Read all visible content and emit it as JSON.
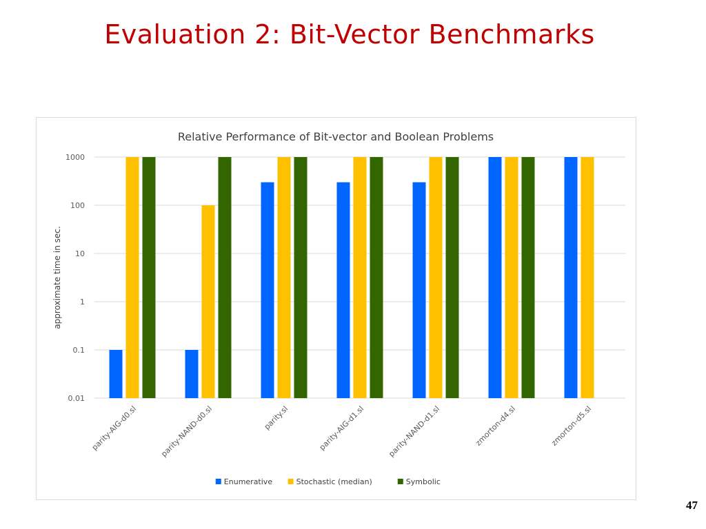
{
  "slide": {
    "title": "Evaluation 2: Bit-Vector Benchmarks",
    "page_number": "47"
  },
  "chart_data": {
    "type": "bar",
    "title": "Relative Performance of Bit-vector and Boolean Problems",
    "xlabel": "",
    "ylabel": "approximate time in sec.",
    "y_scale": "log",
    "ylim": [
      0.01,
      1000
    ],
    "y_ticks": [
      "1000",
      "100",
      "10",
      "1",
      "0.1",
      "0.01"
    ],
    "y_tick_values": [
      1000,
      100,
      10,
      1,
      0.1,
      0.01
    ],
    "grid": true,
    "legend_position": "bottom",
    "categories": [
      "parity-AIG-d0.sl",
      "parity-NAND-d0.sl",
      "parity.sl",
      "parity-AIG-d1.sl",
      "parity-NAND-d1.sl",
      "zmorton-d4.sl",
      "zmorton-d5.sl"
    ],
    "series": [
      {
        "name": "Enumerative",
        "color": "#0066ff",
        "values": [
          0.1,
          0.1,
          300,
          300,
          300,
          1000,
          1000
        ]
      },
      {
        "name": "Stochastic (median)",
        "color": "#ffc000",
        "values": [
          1000,
          100,
          1000,
          1000,
          1000,
          1000,
          1000
        ]
      },
      {
        "name": "Symbolic",
        "color": "#336600",
        "values": [
          1000,
          1000,
          1000,
          1000,
          1000,
          1000,
          null
        ]
      }
    ]
  }
}
